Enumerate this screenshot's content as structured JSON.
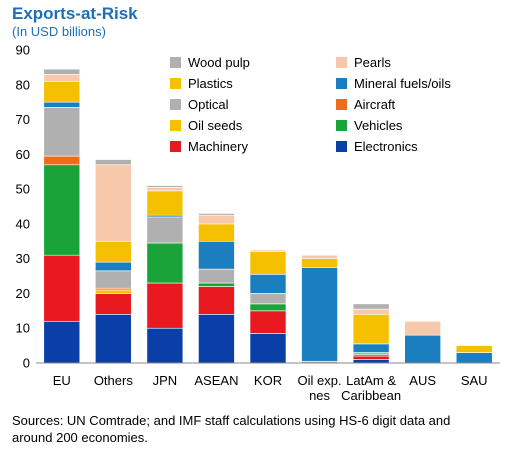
{
  "chart_data": {
    "type": "bar",
    "stacked": true,
    "title": "Exports-at-Risk",
    "subtitle": "(In USD billions)",
    "ylim": [
      0,
      90
    ],
    "yticks": [
      0,
      10,
      20,
      30,
      40,
      50,
      60,
      70,
      80,
      90
    ],
    "grid": false,
    "legend_position": "top-right",
    "categories": [
      "EU",
      "Others",
      "JPN",
      "ASEAN",
      "KOR",
      "Oil exp.\nnes",
      "LatAm &\nCaribbean",
      "AUS",
      "SAU"
    ],
    "series": [
      {
        "name": "Electronics",
        "color": "#0a3fa8",
        "values": [
          12,
          14,
          10,
          14,
          8.5,
          0,
          1,
          0,
          0
        ]
      },
      {
        "name": "Machinery",
        "color": "#e8191f",
        "values": [
          19,
          6,
          13,
          8,
          6.5,
          0,
          1,
          0,
          0
        ]
      },
      {
        "name": "Vehicles",
        "color": "#19a339",
        "values": [
          26,
          0,
          11.5,
          1,
          2,
          0,
          0.5,
          0,
          0
        ]
      },
      {
        "name": "Oil seeds",
        "color": "#f5c000",
        "values": [
          0,
          1,
          0,
          0,
          0,
          0,
          0,
          0,
          0
        ]
      },
      {
        "name": "Aircraft",
        "color": "#ef6c1a",
        "values": [
          2.5,
          0.5,
          0,
          0,
          0,
          0,
          0,
          0,
          0
        ]
      },
      {
        "name": "Optical",
        "color": "#b0b0b0",
        "values": [
          14,
          5,
          7.5,
          4,
          3,
          0.5,
          0.5,
          0,
          0
        ]
      },
      {
        "name": "Mineral fuels/oils",
        "color": "#1b7fbf",
        "values": [
          1.5,
          2.5,
          0.5,
          8,
          5.5,
          27,
          2.5,
          8,
          3
        ]
      },
      {
        "name": "Plastics",
        "color": "#f5c000",
        "values": [
          6,
          6,
          7,
          5,
          6.5,
          2.5,
          8.5,
          0,
          2
        ]
      },
      {
        "name": "Pearls",
        "color": "#f7c9aa",
        "values": [
          2,
          22,
          1,
          2.5,
          0.5,
          1,
          1.5,
          4,
          0
        ]
      },
      {
        "name": "Wood pulp",
        "color": "#b0b0b0",
        "values": [
          1.5,
          1.5,
          0.5,
          0.5,
          0,
          0,
          1.5,
          0,
          0
        ]
      }
    ],
    "legend_order": [
      "Wood pulp",
      "Pearls",
      "Plastics",
      "Mineral fuels/oils",
      "Optical",
      "Aircraft",
      "Oil seeds",
      "Vehicles",
      "Machinery",
      "Electronics"
    ]
  },
  "source_note": "Sources: UN Comtrade; and IMF staff calculations using HS-6 digit data and around 200 economies."
}
